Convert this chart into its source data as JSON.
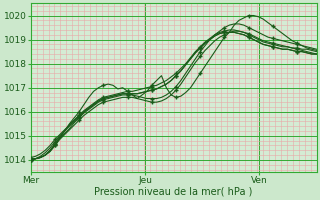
{
  "title": "",
  "xlabel": "Pression niveau de la mer( hPa )",
  "ylabel": "",
  "bg_color": "#cce8cc",
  "plot_bg_color": "#d4ecd4",
  "line_color": "#1a5c1a",
  "grid_major_color": "#33aa33",
  "grid_minor_color": "#e8a8a8",
  "ylim": [
    1013.5,
    1020.5
  ],
  "yticks": [
    1014,
    1015,
    1016,
    1017,
    1018,
    1019,
    1020
  ],
  "xtick_labels": [
    "Mer",
    "Jeu",
    "Ven"
  ],
  "xtick_positions": [
    0,
    48,
    96
  ],
  "xmax": 120,
  "series": [
    [
      1014.0,
      1014.05,
      1014.1,
      1014.2,
      1014.35,
      1014.6,
      1014.9,
      1015.2,
      1015.5,
      1015.75,
      1016.0,
      1016.3,
      1016.6,
      1016.85,
      1017.0,
      1017.1,
      1017.15,
      1017.1,
      1016.95,
      1017.0,
      1016.85,
      1016.7,
      1016.55,
      1016.7,
      1016.85,
      1017.1,
      1017.3,
      1017.5,
      1017.0,
      1016.7,
      1016.6,
      1016.65,
      1016.8,
      1017.0,
      1017.3,
      1017.6,
      1017.9,
      1018.2,
      1018.5,
      1018.8,
      1019.1,
      1019.3,
      1019.6,
      1019.8,
      1019.9,
      1020.0,
      1020.0,
      1019.95,
      1019.85,
      1019.7,
      1019.55,
      1019.4,
      1019.25,
      1019.1,
      1018.95,
      1018.85,
      1018.75,
      1018.65,
      1018.6,
      1018.55
    ],
    [
      1014.0,
      1014.05,
      1014.1,
      1014.2,
      1014.4,
      1014.65,
      1014.95,
      1015.2,
      1015.45,
      1015.65,
      1015.85,
      1016.05,
      1016.2,
      1016.35,
      1016.5,
      1016.6,
      1016.65,
      1016.7,
      1016.75,
      1016.8,
      1016.85,
      1016.85,
      1016.9,
      1016.95,
      1017.0,
      1017.05,
      1017.1,
      1017.2,
      1017.3,
      1017.45,
      1017.6,
      1017.8,
      1018.0,
      1018.25,
      1018.5,
      1018.7,
      1018.9,
      1019.05,
      1019.2,
      1019.3,
      1019.35,
      1019.4,
      1019.4,
      1019.35,
      1019.3,
      1019.2,
      1019.1,
      1019.0,
      1018.9,
      1018.85,
      1018.8,
      1018.75,
      1018.7,
      1018.7,
      1018.65,
      1018.65,
      1018.6,
      1018.6,
      1018.55,
      1018.5
    ],
    [
      1014.0,
      1014.05,
      1014.15,
      1014.3,
      1014.5,
      1014.75,
      1015.0,
      1015.2,
      1015.4,
      1015.6,
      1015.8,
      1016.0,
      1016.15,
      1016.3,
      1016.45,
      1016.55,
      1016.6,
      1016.65,
      1016.7,
      1016.75,
      1016.75,
      1016.75,
      1016.75,
      1016.8,
      1016.85,
      1016.9,
      1016.95,
      1017.05,
      1017.15,
      1017.3,
      1017.5,
      1017.7,
      1017.95,
      1018.2,
      1018.45,
      1018.65,
      1018.85,
      1019.0,
      1019.15,
      1019.25,
      1019.3,
      1019.3,
      1019.3,
      1019.25,
      1019.2,
      1019.1,
      1019.0,
      1018.9,
      1018.8,
      1018.75,
      1018.7,
      1018.65,
      1018.6,
      1018.6,
      1018.55,
      1018.5,
      1018.5,
      1018.45,
      1018.4,
      1018.4
    ],
    [
      1014.1,
      1014.15,
      1014.25,
      1014.4,
      1014.6,
      1014.85,
      1015.05,
      1015.25,
      1015.45,
      1015.65,
      1015.85,
      1016.0,
      1016.15,
      1016.3,
      1016.45,
      1016.55,
      1016.6,
      1016.65,
      1016.7,
      1016.75,
      1016.75,
      1016.75,
      1016.75,
      1016.8,
      1016.85,
      1016.9,
      1016.95,
      1017.05,
      1017.15,
      1017.3,
      1017.5,
      1017.7,
      1017.95,
      1018.2,
      1018.45,
      1018.65,
      1018.85,
      1019.0,
      1019.15,
      1019.25,
      1019.3,
      1019.3,
      1019.3,
      1019.25,
      1019.2,
      1019.1,
      1019.0,
      1018.9,
      1018.8,
      1018.75,
      1018.7,
      1018.65,
      1018.6,
      1018.6,
      1018.55,
      1018.5,
      1018.5,
      1018.45,
      1018.4,
      1018.4
    ],
    [
      1014.0,
      1014.05,
      1014.1,
      1014.2,
      1014.4,
      1014.65,
      1014.9,
      1015.1,
      1015.3,
      1015.55,
      1015.75,
      1015.95,
      1016.1,
      1016.25,
      1016.4,
      1016.5,
      1016.55,
      1016.6,
      1016.65,
      1016.7,
      1016.7,
      1016.7,
      1016.65,
      1016.6,
      1016.55,
      1016.55,
      1016.55,
      1016.6,
      1016.7,
      1016.85,
      1017.05,
      1017.3,
      1017.6,
      1017.9,
      1018.2,
      1018.5,
      1018.75,
      1019.0,
      1019.2,
      1019.35,
      1019.5,
      1019.6,
      1019.65,
      1019.65,
      1019.6,
      1019.5,
      1019.4,
      1019.3,
      1019.2,
      1019.1,
      1019.05,
      1019.0,
      1018.95,
      1018.9,
      1018.85,
      1018.8,
      1018.75,
      1018.7,
      1018.65,
      1018.6
    ],
    [
      1014.0,
      1014.05,
      1014.1,
      1014.2,
      1014.35,
      1014.6,
      1014.85,
      1015.05,
      1015.25,
      1015.45,
      1015.65,
      1015.85,
      1016.0,
      1016.15,
      1016.3,
      1016.4,
      1016.45,
      1016.5,
      1016.55,
      1016.6,
      1016.6,
      1016.6,
      1016.55,
      1016.5,
      1016.45,
      1016.4,
      1016.4,
      1016.45,
      1016.55,
      1016.7,
      1016.9,
      1017.15,
      1017.45,
      1017.75,
      1018.05,
      1018.3,
      1018.55,
      1018.75,
      1018.95,
      1019.1,
      1019.2,
      1019.3,
      1019.35,
      1019.35,
      1019.3,
      1019.25,
      1019.15,
      1019.05,
      1018.95,
      1018.9,
      1018.85,
      1018.8,
      1018.75,
      1018.7,
      1018.65,
      1018.6,
      1018.55,
      1018.5,
      1018.45,
      1018.4
    ]
  ]
}
